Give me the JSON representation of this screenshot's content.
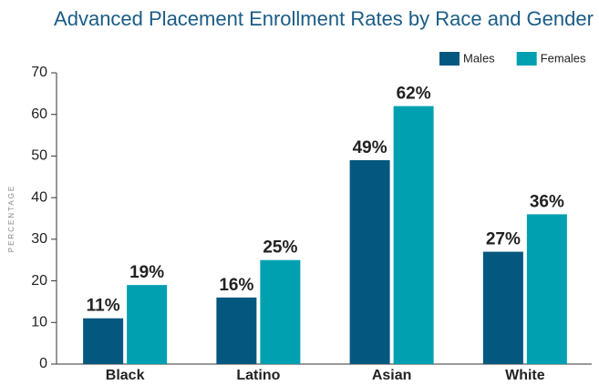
{
  "chart_data": {
    "type": "bar",
    "title": "Advanced Placement Enrollment Rates by Race and Gender",
    "y_label": "PERCENTAGE",
    "categories": [
      "Black",
      "Latino",
      "Asian",
      "White"
    ],
    "series": [
      {
        "name": "Males",
        "color": "#04587f",
        "values": [
          11,
          16,
          49,
          27
        ],
        "value_labels": [
          "11%",
          "16%",
          "49%",
          "27%"
        ]
      },
      {
        "name": "Females",
        "color": "#00a0b1",
        "values": [
          19,
          25,
          62,
          36
        ],
        "value_labels": [
          "19%",
          "25%",
          "62%",
          "36%"
        ]
      }
    ],
    "ylim": [
      0,
      70
    ],
    "yticks": [
      0,
      10,
      20,
      30,
      40,
      50,
      60,
      70
    ],
    "legend": "top-right",
    "grid": false
  }
}
